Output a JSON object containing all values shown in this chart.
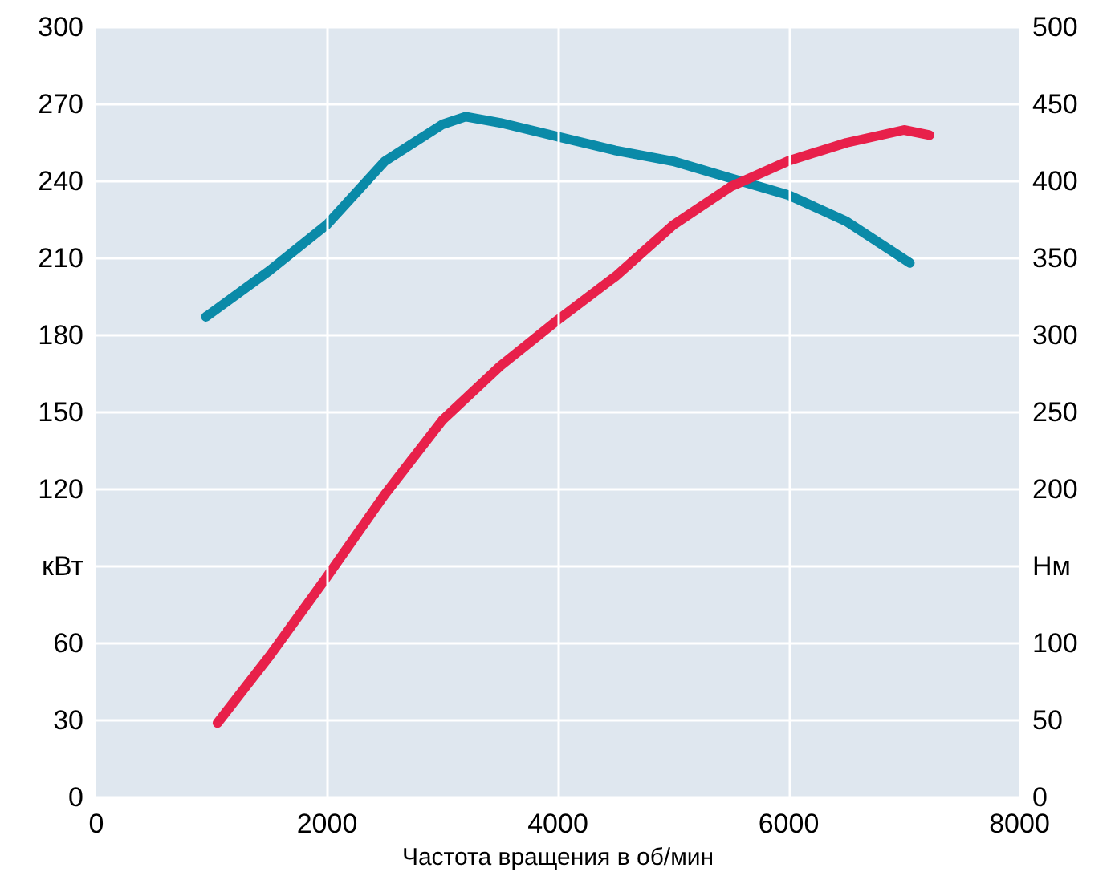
{
  "chart_data": {
    "type": "line",
    "xlabel": "Частота вращения в об/мин",
    "xlim": [
      0,
      8000
    ],
    "xticks": [
      0,
      2000,
      4000,
      6000,
      8000
    ],
    "ylim": [
      0,
      300
    ],
    "yticks": [
      0,
      30,
      60,
      {
        "value": 90,
        "label": "кВт"
      },
      120,
      150,
      180,
      210,
      240,
      270,
      300
    ],
    "y2lim": [
      0,
      500
    ],
    "y2ticks": [
      0,
      50,
      100,
      {
        "value": 150,
        "label": "Нм"
      },
      200,
      250,
      300,
      350,
      400,
      450,
      500
    ],
    "grid": true,
    "marker": "none",
    "line_style": "solid",
    "series": [
      {
        "color": "#0a8aa8",
        "axis": "y2",
        "x": [
          950,
          1500,
          2000,
          2500,
          3000,
          3200,
          3500,
          4000,
          4500,
          5000,
          5500,
          6000,
          6500,
          7050
        ],
        "values": [
          312,
          342,
          372,
          413,
          437,
          442,
          438,
          429,
          420,
          413,
          402,
          391,
          374,
          347
        ]
      },
      {
        "color": "#e8204a",
        "x": [
          1050,
          1500,
          2000,
          2500,
          3000,
          3500,
          4000,
          4500,
          5000,
          5500,
          6000,
          6500,
          7000,
          7220
        ],
        "values": [
          29,
          55,
          86,
          118,
          147,
          168,
          186,
          203,
          223,
          238,
          248,
          255,
          260,
          258
        ]
      }
    ]
  }
}
